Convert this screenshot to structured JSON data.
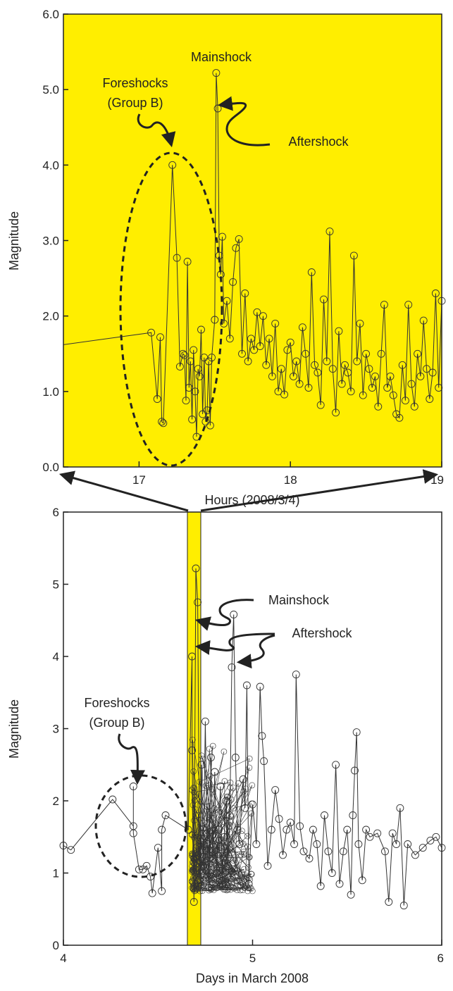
{
  "colors": {
    "highlight": "#ffee00",
    "series": "#333333",
    "axis": "#222222"
  },
  "chart_data": [
    {
      "type": "line",
      "xlabel": "Hours (2008/3/4)",
      "ylabel": "Magnitude",
      "xlim": [
        16.5,
        19
      ],
      "ylim": [
        0,
        6
      ],
      "xticks": [
        17,
        18,
        19
      ],
      "yticks": [
        0,
        1,
        2,
        3,
        4,
        5,
        6
      ],
      "ytick_labels": [
        "0.0",
        "1.0",
        "2.0",
        "3.0",
        "4.0",
        "5.0",
        "6.0"
      ],
      "background": "highlight",
      "annotations": [
        {
          "id": "mainshock",
          "text": "Mainshock"
        },
        {
          "id": "aftershock",
          "text": "Aftershock"
        },
        {
          "id": "foreshocks",
          "lines": [
            "Foreshocks",
            "(Group B)"
          ]
        }
      ],
      "x": [
        16.5,
        17.08,
        17.12,
        17.14,
        17.15,
        17.16,
        17.22,
        17.25,
        17.27,
        17.29,
        17.3,
        17.31,
        17.32,
        17.33,
        17.34,
        17.35,
        17.36,
        17.37,
        17.38,
        17.39,
        17.4,
        17.41,
        17.42,
        17.43,
        17.44,
        17.45,
        17.46,
        17.47,
        17.48,
        17.5,
        17.51,
        17.52,
        17.53,
        17.54,
        17.55,
        17.56,
        17.58,
        17.6,
        17.62,
        17.64,
        17.66,
        17.68,
        17.7,
        17.72,
        17.74,
        17.76,
        17.78,
        17.8,
        17.82,
        17.84,
        17.86,
        17.88,
        17.9,
        17.92,
        17.94,
        17.96,
        17.98,
        18.0,
        18.02,
        18.04,
        18.06,
        18.08,
        18.1,
        18.12,
        18.14,
        18.16,
        18.18,
        18.2,
        18.22,
        18.24,
        18.26,
        18.28,
        18.3,
        18.32,
        18.34,
        18.36,
        18.38,
        18.4,
        18.42,
        18.44,
        18.46,
        18.48,
        18.5,
        18.52,
        18.54,
        18.56,
        18.58,
        18.6,
        18.62,
        18.64,
        18.66,
        18.68,
        18.7,
        18.72,
        18.74,
        18.76,
        18.78,
        18.8,
        18.82,
        18.84,
        18.86,
        18.88,
        18.9,
        18.92,
        18.94,
        18.96,
        18.98,
        19.0
      ],
      "y": [
        1.62,
        1.78,
        0.9,
        1.72,
        0.6,
        0.58,
        4.0,
        2.77,
        1.33,
        1.5,
        1.48,
        0.88,
        2.72,
        1.05,
        1.4,
        0.63,
        1.55,
        1.0,
        0.4,
        1.3,
        1.2,
        1.82,
        0.7,
        1.45,
        0.6,
        0.75,
        1.4,
        0.55,
        1.45,
        1.95,
        5.22,
        4.75,
        2.8,
        2.55,
        3.05,
        1.9,
        2.2,
        1.7,
        2.45,
        2.9,
        3.02,
        1.5,
        2.3,
        1.4,
        1.7,
        1.55,
        2.05,
        1.6,
        2.0,
        1.35,
        1.7,
        1.2,
        1.9,
        1.0,
        1.3,
        0.96,
        1.55,
        1.65,
        1.2,
        1.4,
        1.1,
        1.85,
        1.5,
        1.05,
        2.58,
        1.35,
        1.25,
        0.82,
        2.22,
        1.4,
        3.12,
        1.3,
        0.72,
        1.8,
        1.1,
        1.35,
        1.25,
        1.0,
        2.8,
        1.4,
        1.9,
        0.95,
        1.5,
        1.3,
        1.05,
        1.2,
        0.8,
        1.5,
        2.15,
        1.05,
        1.2,
        0.95,
        0.7,
        0.65,
        1.35,
        0.88,
        2.15,
        1.1,
        0.8,
        1.5,
        1.2,
        1.94,
        1.3,
        0.9,
        1.25,
        2.3,
        1.05,
        2.2
      ]
    },
    {
      "type": "line",
      "xlabel": "Days in March 2008",
      "ylabel": "Magnitude",
      "xlim": [
        4,
        6
      ],
      "ylim": [
        0,
        6
      ],
      "xticks": [
        4,
        5,
        6
      ],
      "yticks": [
        0,
        1,
        2,
        3,
        4,
        5,
        6
      ],
      "ytick_labels": [
        "0",
        "1",
        "2",
        "3",
        "4",
        "5",
        "6"
      ],
      "highlight_range": [
        4.69,
        4.79
      ],
      "annotations": [
        {
          "id": "mainshock",
          "text": "Mainshock"
        },
        {
          "id": "aftershock",
          "text": "Aftershock"
        },
        {
          "id": "foreshocks",
          "lines": [
            "Foreshocks",
            "(Group B)"
          ]
        }
      ],
      "x": [
        4.0,
        4.04,
        4.26,
        4.37,
        4.37,
        4.37,
        4.4,
        4.42,
        4.44,
        4.46,
        4.47,
        4.5,
        4.52,
        4.52,
        4.54,
        4.66,
        4.68,
        4.68,
        4.69,
        4.7,
        4.71,
        4.72,
        4.73,
        4.74,
        4.75,
        4.76,
        4.77,
        4.78,
        4.79,
        4.8,
        4.81,
        4.82,
        4.83,
        4.84,
        4.85,
        4.86,
        4.87,
        4.88,
        4.89,
        4.9,
        4.91,
        4.92,
        4.93,
        4.95,
        4.96,
        4.97,
        4.98,
        5.0,
        5.02,
        5.04,
        5.05,
        5.06,
        5.08,
        5.1,
        5.12,
        5.14,
        5.16,
        5.18,
        5.2,
        5.22,
        5.23,
        5.25,
        5.27,
        5.3,
        5.32,
        5.34,
        5.36,
        5.38,
        5.4,
        5.42,
        5.44,
        5.46,
        5.48,
        5.5,
        5.52,
        5.53,
        5.54,
        5.55,
        5.56,
        5.58,
        5.6,
        5.62,
        5.66,
        5.7,
        5.72,
        5.74,
        5.76,
        5.78,
        5.8,
        5.82,
        5.86,
        5.9,
        5.94,
        5.97,
        6.0
      ],
      "y": [
        1.38,
        1.32,
        2.02,
        1.65,
        2.2,
        1.55,
        1.05,
        1.05,
        1.1,
        0.95,
        0.72,
        1.35,
        0.75,
        1.6,
        1.8,
        1.6,
        4.0,
        2.7,
        0.6,
        5.22,
        4.75,
        0.9,
        2.5,
        1.1,
        3.1,
        1.4,
        0.8,
        2.6,
        1.2,
        2.4,
        1.0,
        1.6,
        2.2,
        0.9,
        1.5,
        2.0,
        1.1,
        1.8,
        3.85,
        4.58,
        2.6,
        1.6,
        1.4,
        2.3,
        1.9,
        3.6,
        0.85,
        1.95,
        1.4,
        3.58,
        2.9,
        2.55,
        1.1,
        1.6,
        2.15,
        1.75,
        1.25,
        1.6,
        1.7,
        1.4,
        3.75,
        1.65,
        1.3,
        1.2,
        1.6,
        1.4,
        0.82,
        1.8,
        1.3,
        1.0,
        2.5,
        0.85,
        1.3,
        1.6,
        0.7,
        1.8,
        2.42,
        2.95,
        1.4,
        0.9,
        1.6,
        1.5,
        1.55,
        1.3,
        0.6,
        1.55,
        1.4,
        1.9,
        0.55,
        1.4,
        1.25,
        1.35,
        1.45,
        1.5,
        1.35
      ]
    }
  ]
}
